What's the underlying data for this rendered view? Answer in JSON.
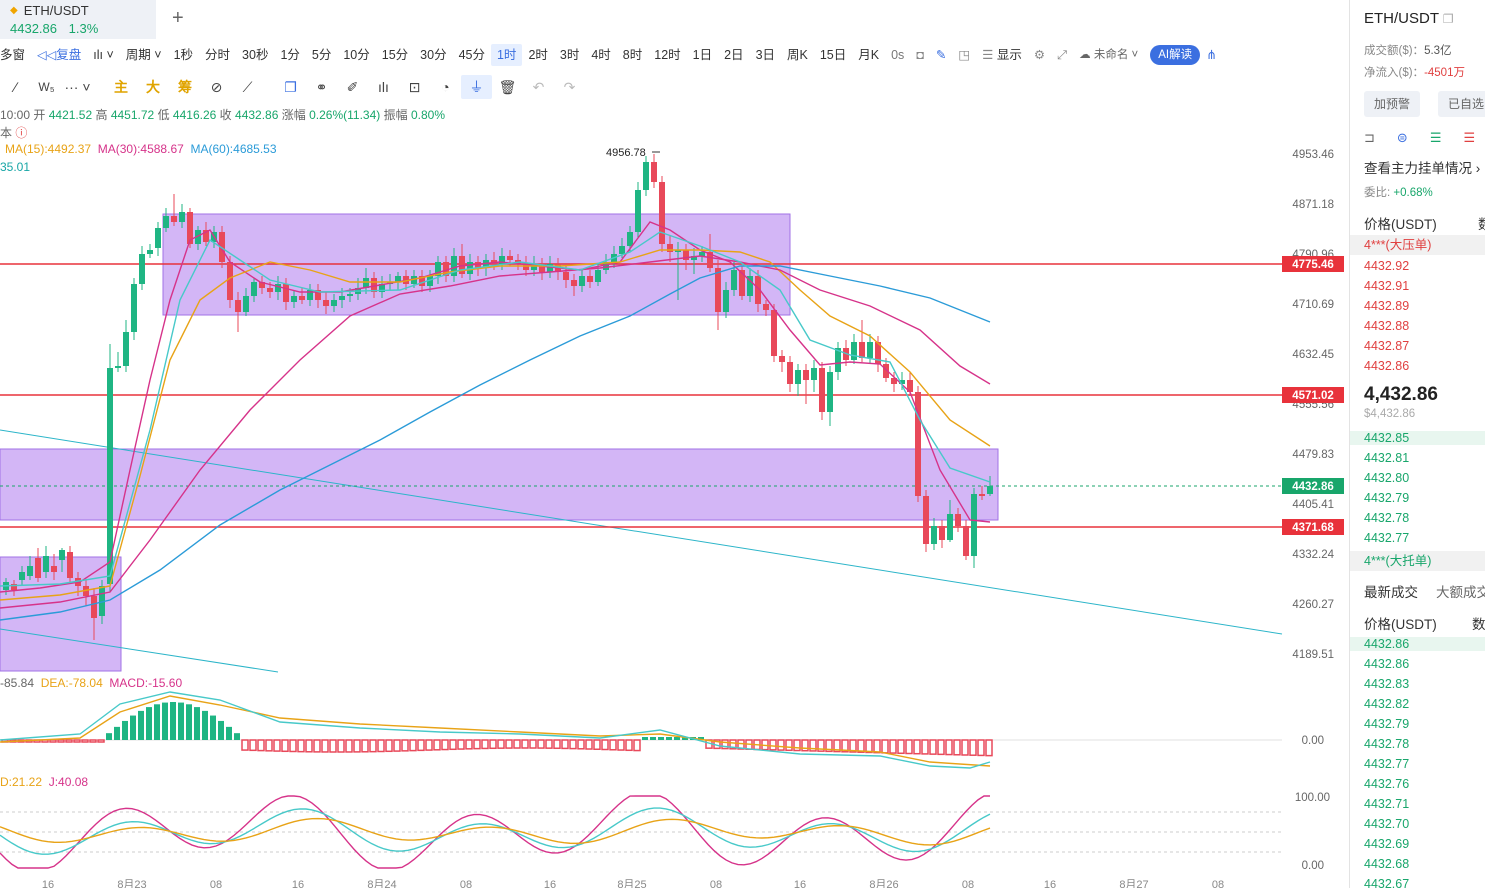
{
  "tab": {
    "symbol": "ETH/USDT",
    "price": "4432.86",
    "change": "1.3%"
  },
  "toolbar1": {
    "items": [
      "多窗",
      "复盘",
      "周期",
      "1秒",
      "分时",
      "30秒",
      "1分",
      "5分",
      "10分",
      "15分",
      "30分",
      "45分",
      "1时",
      "2时",
      "3时",
      "4时",
      "8时",
      "12时",
      "1日",
      "2日",
      "3日",
      "周K",
      "15日",
      "月K",
      "0s"
    ],
    "active": "1时",
    "display": "显示",
    "unnamed": "未命名",
    "ai": "AI解读"
  },
  "toolbar2": {
    "indicators": [
      "主",
      "大",
      "筹"
    ]
  },
  "ohlc": {
    "time": "10:00",
    "open_label": "开",
    "open": "4421.52",
    "high_label": "高",
    "high": "4451.72",
    "low_label": "低",
    "low": "4416.26",
    "close_label": "收",
    "close": "4432.86",
    "chg_label": "涨幅",
    "chg": "0.26%(11.34)",
    "amp_label": "振幅",
    "amp": "0.80%"
  },
  "ma_legend": {
    "ma15": "MA(15):4492.37",
    "ma30": "MA(30):4588.67",
    "ma60": "MA(60):4685.53",
    "extra": "35.01",
    "prefix": "本"
  },
  "price_axis": {
    "labels": [
      "4953.46",
      "4871.18",
      "4790.96",
      "4710.69",
      "4632.45",
      "4555.56",
      "4479.83",
      "4405.41",
      "4332.24",
      "4260.27",
      "4189.51"
    ]
  },
  "price_tags": [
    {
      "label": "4775.46",
      "color": "#e8323b"
    },
    {
      "label": "4571.02",
      "color": "#e8323b"
    },
    {
      "label": "4432.86",
      "color": "#18a66b"
    },
    {
      "label": "4371.68",
      "color": "#e8323b"
    }
  ],
  "annotation": {
    "high": "4956.78"
  },
  "macd_legend": {
    "dif": "-85.84",
    "dea": "DEA:-78.04",
    "macd": "MACD:-15.60",
    "zero": "0.00"
  },
  "kdj_legend": {
    "d": "D:21.22",
    "j": "J:40.08",
    "hi": "100.00",
    "lo": "0.00"
  },
  "time_axis": [
    "16",
    "8月23",
    "08",
    "16",
    "8月24",
    "08",
    "16",
    "8月25",
    "08",
    "16",
    "8月26",
    "08",
    "16",
    "8月27",
    "08"
  ],
  "right_panel": {
    "title": "ETH/USDT",
    "volume_label": "成交额($)：",
    "volume": "5.3亿",
    "netflow_label": "净流入($)：",
    "netflow": "-4501万",
    "alert_btn": "加预警",
    "watch_btn": "已自选",
    "depth_link": "查看主力挂单情况",
    "ratio_label": "委比:",
    "ratio": "+0.68%",
    "price_header": "价格(USDT)",
    "qty_header": "数",
    "ask_banner": "4***(大压单)",
    "asks": [
      "4432.92",
      "4432.91",
      "4432.89",
      "4432.88",
      "4432.87",
      "4432.86"
    ],
    "last_price": "4,432.86",
    "last_usd": "$4,432.86",
    "bids": [
      "4432.85",
      "4432.81",
      "4432.80",
      "4432.79",
      "4432.78",
      "4432.77"
    ],
    "bid_banner": "4***(大托单)",
    "trade_tab1": "最新成交",
    "trade_tab2": "大额成交",
    "trades": [
      "4432.86",
      "4432.86",
      "4432.83",
      "4432.82",
      "4432.79",
      "4432.78",
      "4432.77",
      "4432.76",
      "4432.71",
      "4432.70",
      "4432.69",
      "4432.68",
      "4432.67"
    ]
  }
}
